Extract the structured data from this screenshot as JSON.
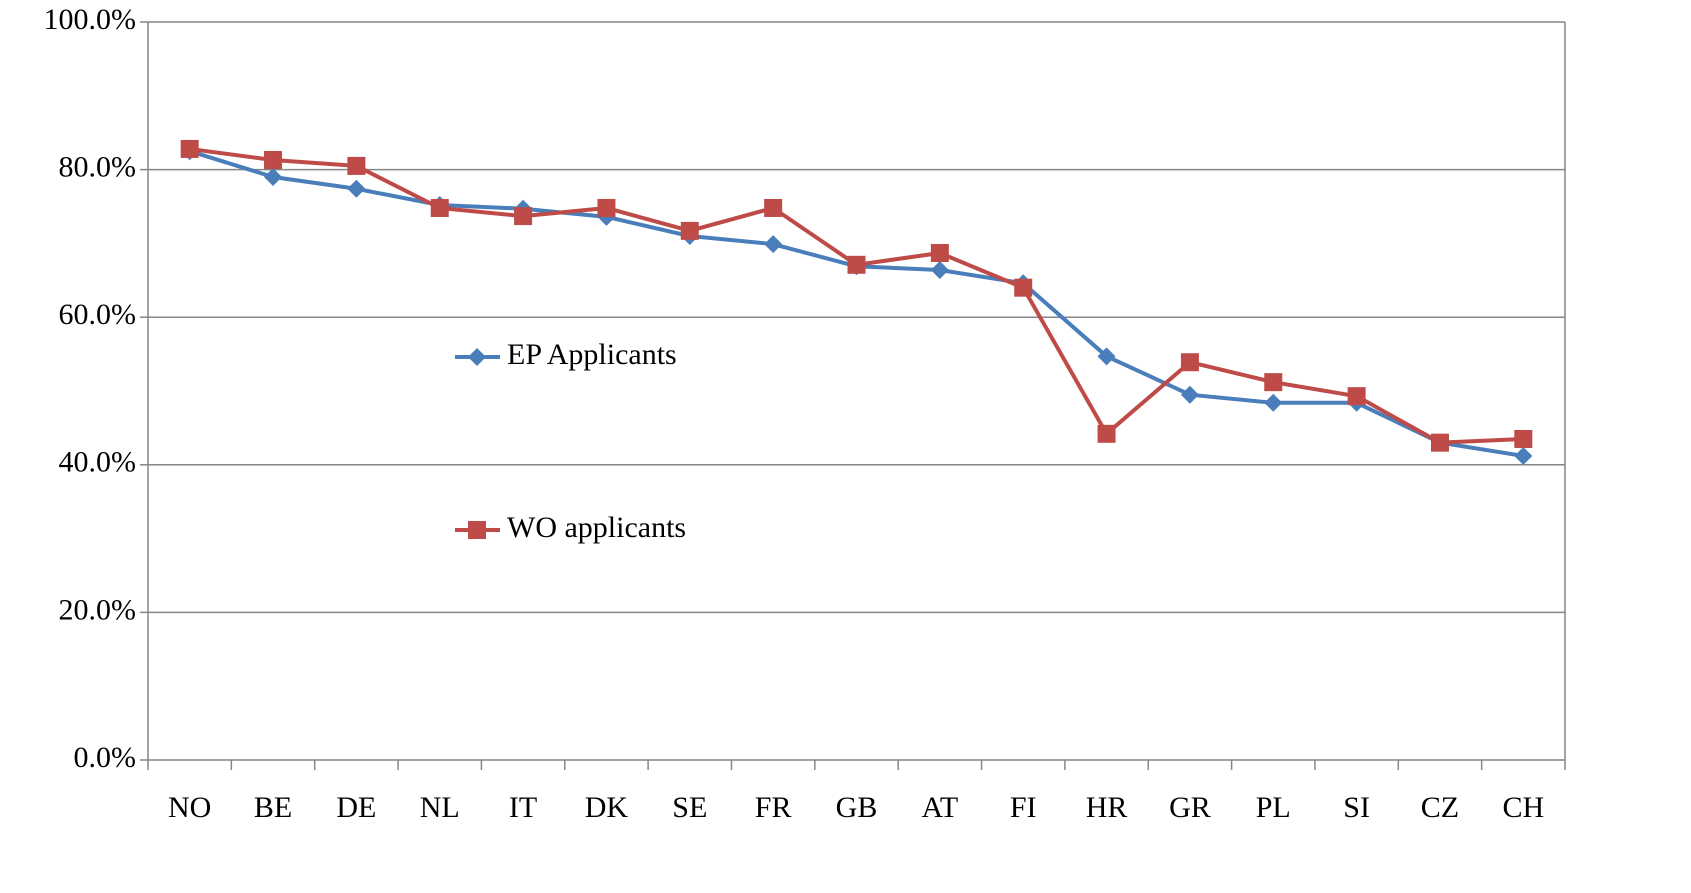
{
  "chart_data": {
    "type": "line",
    "categories": [
      "NO",
      "BE",
      "DE",
      "NL",
      "IT",
      "DK",
      "SE",
      "FR",
      "GB",
      "AT",
      "FI",
      "HR",
      "GR",
      "PL",
      "SI",
      "CZ",
      "CH"
    ],
    "series": [
      {
        "name": "EP Applicants",
        "color": "#4a7ebb",
        "marker": "diamond",
        "values": [
          82.5,
          79.0,
          77.4,
          75.2,
          74.7,
          73.6,
          71.0,
          69.9,
          66.9,
          66.4,
          64.6,
          54.7,
          49.5,
          48.4,
          48.4,
          43.0,
          41.2
        ]
      },
      {
        "name": "WO applicants",
        "color": "#be4b48",
        "marker": "square",
        "values": [
          82.8,
          81.3,
          80.5,
          74.8,
          73.7,
          74.8,
          71.7,
          74.8,
          67.1,
          68.7,
          64.0,
          44.2,
          53.9,
          51.2,
          49.3,
          43.0,
          43.5
        ]
      }
    ],
    "ylim": [
      0,
      100
    ],
    "yticks": [
      {
        "value": 0,
        "label": "0.0%"
      },
      {
        "value": 20,
        "label": "20.0%"
      },
      {
        "value": 40,
        "label": "40.0%"
      },
      {
        "value": 60,
        "label": "60.0%"
      },
      {
        "value": 80,
        "label": "80.0%"
      },
      {
        "value": 100,
        "label": "100.0%"
      }
    ],
    "grid": true
  }
}
